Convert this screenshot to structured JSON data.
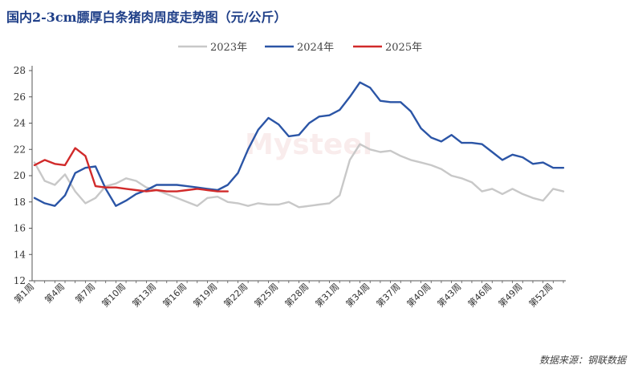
{
  "title": "国内2-3cm膘厚白条猪肉周度走势图（元/公斤）",
  "source": "数据来源：钢联数据",
  "watermark": "Mysteel",
  "colors": {
    "2023": "#c8c8c8",
    "2024": "#2b55a6",
    "2025": "#d12a2a",
    "axis": "#555555",
    "title": "#1f3f88"
  },
  "chart_data": {
    "type": "line",
    "title": "国内2-3cm膘厚白条猪肉周度走势图（元/公斤）",
    "xlabel": "",
    "ylabel": "",
    "ylim": [
      12,
      28
    ],
    "yticks": [
      12,
      14,
      16,
      18,
      20,
      22,
      24,
      26,
      28
    ],
    "grid": false,
    "legend": "top-center",
    "xtick_labels": [
      "第1周",
      "第4周",
      "第7周",
      "第10周",
      "第13周",
      "第16周",
      "第19周",
      "第22周",
      "第25周",
      "第28周",
      "第31周",
      "第34周",
      "第37周",
      "第40周",
      "第43周",
      "第46周",
      "第49周",
      "第52周"
    ],
    "xtick_weeks": [
      1,
      4,
      7,
      10,
      13,
      16,
      19,
      22,
      25,
      28,
      31,
      34,
      37,
      40,
      43,
      46,
      49,
      52
    ],
    "series": [
      {
        "name": "2023年",
        "color": "#c8c8c8",
        "x": [
          1,
          2,
          3,
          4,
          5,
          6,
          7,
          8,
          9,
          10,
          11,
          12,
          13,
          14,
          15,
          16,
          17,
          18,
          19,
          20,
          21,
          22,
          23,
          24,
          25,
          26,
          27,
          28,
          29,
          30,
          31,
          32,
          33,
          34,
          35,
          36,
          37,
          38,
          39,
          40,
          41,
          42,
          43,
          44,
          45,
          46,
          47,
          48,
          49,
          50,
          51,
          52,
          53
        ],
        "values": [
          21.0,
          19.6,
          19.3,
          20.1,
          18.8,
          17.9,
          18.3,
          19.2,
          19.4,
          19.8,
          19.6,
          19.1,
          18.9,
          18.6,
          18.3,
          18.0,
          17.7,
          18.3,
          18.4,
          18.0,
          17.9,
          17.7,
          17.9,
          17.8,
          17.8,
          18.0,
          17.6,
          17.7,
          17.8,
          17.9,
          18.5,
          21.2,
          22.4,
          22.0,
          21.8,
          21.9,
          21.5,
          21.2,
          21.0,
          20.8,
          20.5,
          20.0,
          19.8,
          19.5,
          18.8,
          19.0,
          18.6,
          19.0,
          18.6,
          18.3,
          18.1,
          19.0,
          18.8
        ]
      },
      {
        "name": "2024年",
        "color": "#2b55a6",
        "x": [
          1,
          2,
          3,
          4,
          5,
          6,
          7,
          8,
          9,
          10,
          11,
          12,
          13,
          14,
          15,
          16,
          17,
          18,
          19,
          20,
          21,
          22,
          23,
          24,
          25,
          26,
          27,
          28,
          29,
          30,
          31,
          32,
          33,
          34,
          35,
          36,
          37,
          38,
          39,
          40,
          41,
          42,
          43,
          44,
          45,
          46,
          47,
          48,
          49,
          50,
          51,
          52,
          53
        ],
        "values": [
          18.3,
          17.9,
          17.7,
          18.5,
          20.2,
          20.6,
          20.7,
          19.0,
          17.7,
          18.1,
          18.6,
          18.9,
          19.3,
          19.3,
          19.3,
          19.2,
          19.1,
          19.0,
          18.9,
          19.3,
          20.2,
          22.0,
          23.5,
          24.4,
          23.9,
          23.0,
          23.1,
          24.0,
          24.5,
          24.6,
          25.0,
          26.0,
          27.1,
          26.7,
          25.7,
          25.6,
          25.6,
          24.9,
          23.6,
          22.9,
          22.6,
          23.1,
          22.5,
          22.5,
          22.4,
          21.8,
          21.2,
          21.6,
          21.4,
          20.9,
          21.0,
          20.6,
          20.6
        ]
      },
      {
        "name": "2025年",
        "color": "#d12a2a",
        "x": [
          1,
          2,
          3,
          4,
          5,
          6,
          7,
          8,
          9,
          10,
          11,
          12,
          13,
          14,
          15,
          16,
          17,
          18,
          19,
          20
        ],
        "values": [
          20.8,
          21.2,
          20.9,
          20.8,
          22.1,
          21.5,
          19.2,
          19.1,
          19.1,
          19.0,
          18.9,
          18.8,
          18.9,
          18.8,
          18.8,
          18.9,
          19.0,
          18.9,
          18.8,
          18.8
        ]
      }
    ]
  }
}
